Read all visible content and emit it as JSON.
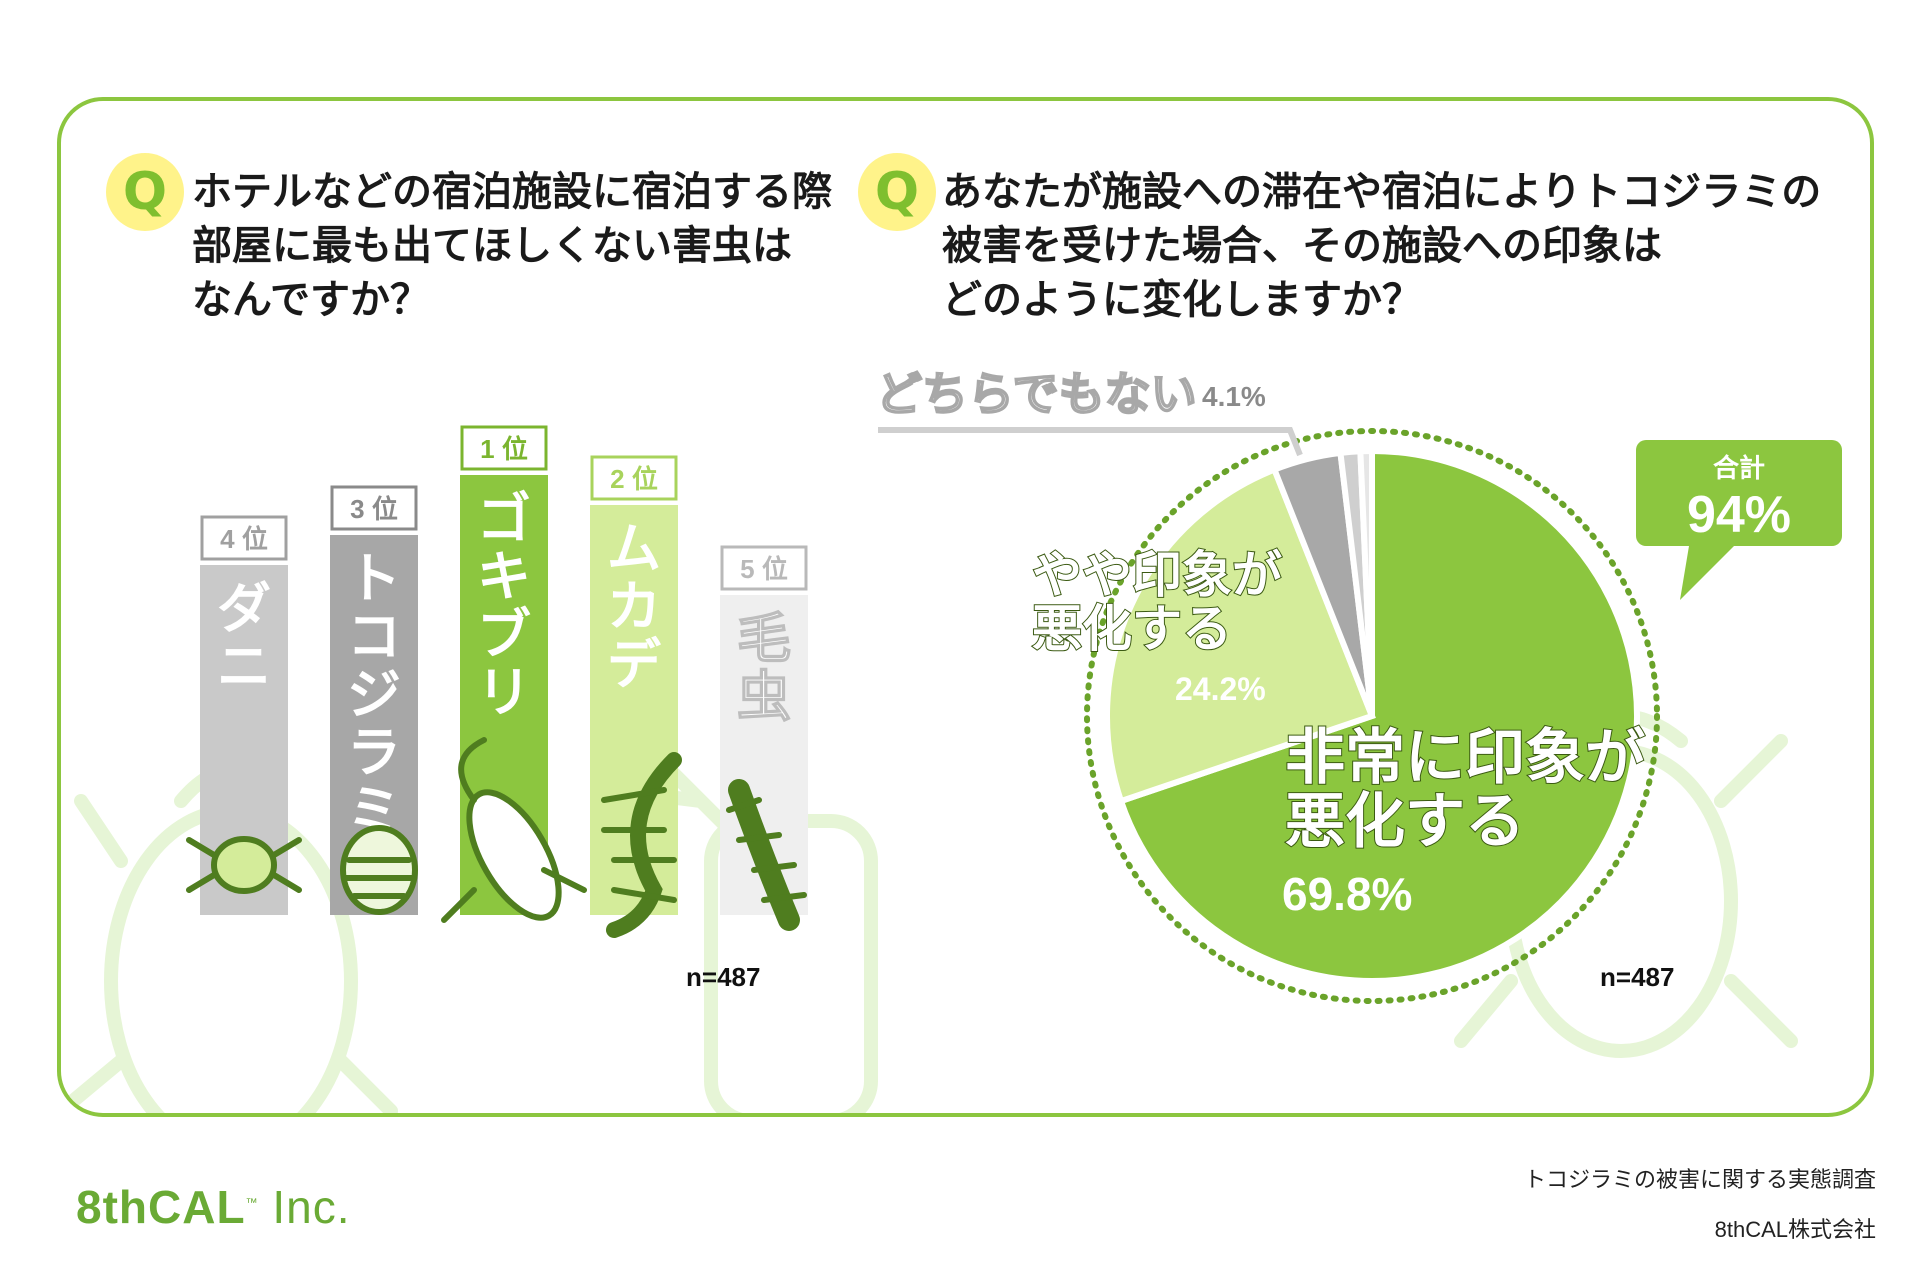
{
  "left_question": {
    "badge": "Q",
    "text": "ホテルなどの宿泊施設に宿泊する際\n部屋に最も出てほしくない害虫は\nなんですか？"
  },
  "right_question": {
    "badge": "Q",
    "text": "あなたが施設への滞在や宿泊によりトコジラミの\n被害を受けた場合、その施設への印象は\nどのように変化しますか？"
  },
  "chart_data": [
    {
      "type": "bar",
      "categories": [
        "ダニ",
        "トコジラミ",
        "ゴキブリ",
        "ムカデ",
        "毛虫"
      ],
      "ranks": [
        "4 位",
        "3 位",
        "1 位",
        "2 位",
        "5 位"
      ],
      "rank_values": [
        4,
        3,
        1,
        2,
        5
      ],
      "colors": [
        "#c9c9c9",
        "#a7a7a7",
        "#8cc63f",
        "#d4ec9a",
        "#efefef"
      ],
      "rank_colors": [
        "#a0a0a0",
        "#8a8a8a",
        "#7bb52f",
        "#a8d35c",
        "#b9b9b9"
      ],
      "insect_icons": [
        "mite-icon",
        "bedbug-icon",
        "cockroach-icon",
        "centipede-icon",
        "caterpillar-icon"
      ],
      "n": "n=487"
    },
    {
      "type": "pie",
      "slices": [
        {
          "label": "非常に印象が\n悪化する",
          "value": 69.8,
          "value_label": "69.8%",
          "color": "#8cc63f"
        },
        {
          "label": "やや印象が\n悪化する",
          "value": 24.2,
          "value_label": "24.2%",
          "color": "#d4ec9a"
        },
        {
          "label": "どちらでもない",
          "value": 4.1,
          "value_label": "4.1%",
          "color": "#a8a8a8"
        },
        {
          "label": "",
          "value": 1.2,
          "color": "#cfcfcf"
        },
        {
          "label": "",
          "value": 0.7,
          "color": "#e6e6e6"
        }
      ],
      "total": {
        "label": "合計",
        "value": "94%"
      },
      "n": "n=487"
    }
  ],
  "footer": {
    "logo_bold": "8thCAL",
    "logo_tm": "™",
    "logo_rest": " Inc.",
    "survey_title": "トコジラミの被害に関する実態調査",
    "company": "8thCAL株式会社"
  }
}
